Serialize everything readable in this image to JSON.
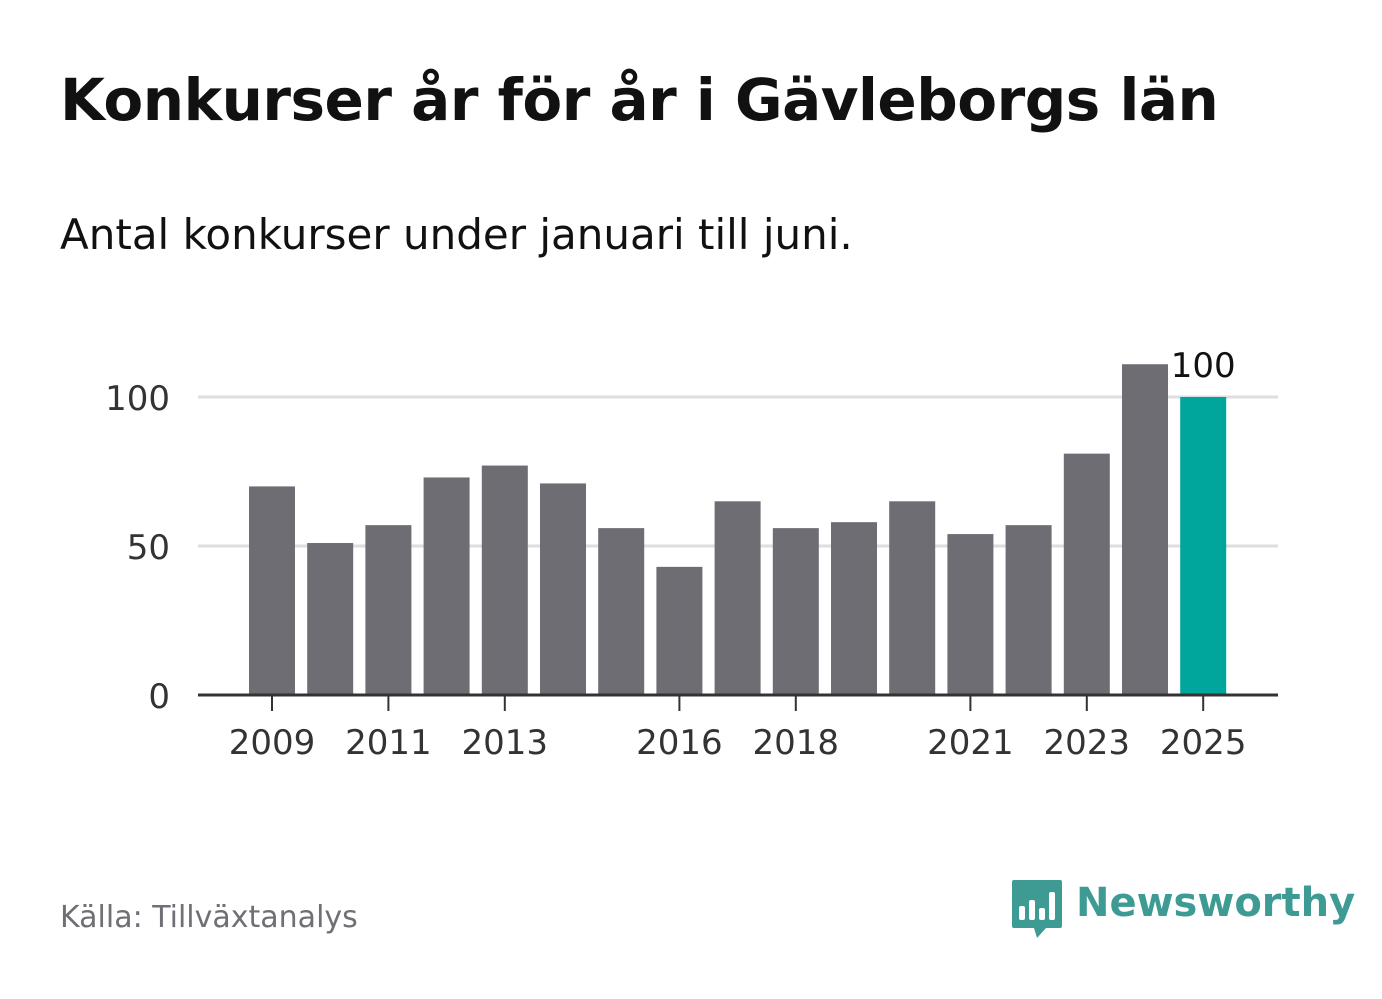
{
  "header": {
    "title": "Konkurser år för år i Gävleborgs län",
    "subtitle": "Antal konkurser under januari till juni."
  },
  "footer": {
    "source": "Källa: Tillväxtanalys",
    "brand_name": "Newsworthy",
    "brand_icon": "bar-chart-speech-bubble-icon"
  },
  "colors": {
    "bar": "#6e6d73",
    "highlight": "#00a59b",
    "grid": "#dedede",
    "axis": "#333333",
    "brand": "#3e9b94"
  },
  "chart_data": {
    "type": "bar",
    "categories": [
      2009,
      2010,
      2011,
      2012,
      2013,
      2014,
      2015,
      2016,
      2017,
      2018,
      2019,
      2020,
      2021,
      2022,
      2023,
      2024,
      2025
    ],
    "values": [
      70,
      51,
      57,
      73,
      77,
      71,
      56,
      43,
      65,
      56,
      58,
      65,
      54,
      57,
      81,
      111,
      100
    ],
    "x_tick_labels": [
      "2009",
      "2011",
      "2013",
      "2016",
      "2018",
      "2021",
      "2023",
      "2025"
    ],
    "y_ticks": [
      0,
      50,
      100
    ],
    "ylim": [
      0,
      111
    ],
    "highlight_category": 2025,
    "data_label": "100",
    "grid": true
  }
}
